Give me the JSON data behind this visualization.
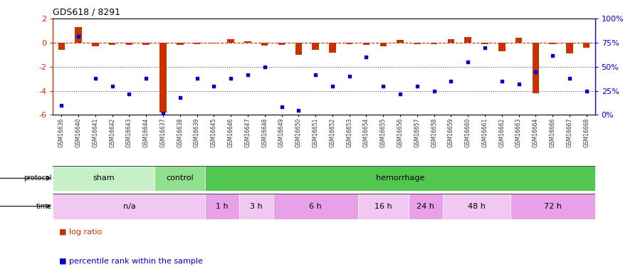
{
  "title": "GDS618 / 8291",
  "samples": [
    "GSM16636",
    "GSM16640",
    "GSM16641",
    "GSM16642",
    "GSM16643",
    "GSM16644",
    "GSM16637",
    "GSM16638",
    "GSM16639",
    "GSM16645",
    "GSM16646",
    "GSM16647",
    "GSM16648",
    "GSM16649",
    "GSM16650",
    "GSM16651",
    "GSM16652",
    "GSM16653",
    "GSM16654",
    "GSM16655",
    "GSM16656",
    "GSM16657",
    "GSM16658",
    "GSM16659",
    "GSM16660",
    "GSM16661",
    "GSM16662",
    "GSM16663",
    "GSM16664",
    "GSM16666",
    "GSM16667",
    "GSM16668"
  ],
  "log_ratio": [
    -0.6,
    1.3,
    -0.3,
    -0.2,
    -0.2,
    -0.2,
    -5.8,
    -0.15,
    -0.1,
    -0.05,
    0.3,
    0.1,
    -0.25,
    -0.2,
    -1.0,
    -0.6,
    -0.8,
    -0.1,
    -0.15,
    -0.3,
    0.25,
    -0.1,
    -0.1,
    0.3,
    0.5,
    -0.1,
    -0.7,
    0.4,
    -4.2,
    -0.1,
    -0.9,
    -0.4
  ],
  "percentile": [
    10,
    82,
    38,
    30,
    22,
    38,
    2,
    18,
    38,
    30,
    38,
    42,
    50,
    8,
    5,
    42,
    30,
    40,
    60,
    30,
    22,
    30,
    25,
    35,
    55,
    70,
    35,
    32,
    45,
    62,
    38,
    25
  ],
  "protocol_groups": [
    {
      "label": "sham",
      "start": 0,
      "end": 6,
      "color": "#c8f0c8"
    },
    {
      "label": "control",
      "start": 6,
      "end": 9,
      "color": "#90e090"
    },
    {
      "label": "hemorrhage",
      "start": 9,
      "end": 32,
      "color": "#50c850"
    }
  ],
  "time_groups": [
    {
      "label": "n/a",
      "start": 0,
      "end": 9,
      "color": "#f0c8f0"
    },
    {
      "label": "1 h",
      "start": 9,
      "end": 11,
      "color": "#e8a0e8"
    },
    {
      "label": "3 h",
      "start": 11,
      "end": 13,
      "color": "#f0c8f0"
    },
    {
      "label": "6 h",
      "start": 13,
      "end": 18,
      "color": "#e8a0e8"
    },
    {
      "label": "16 h",
      "start": 18,
      "end": 21,
      "color": "#f0c8f0"
    },
    {
      "label": "24 h",
      "start": 21,
      "end": 23,
      "color": "#e8a0e8"
    },
    {
      "label": "48 h",
      "start": 23,
      "end": 27,
      "color": "#f0c8f0"
    },
    {
      "label": "72 h",
      "start": 27,
      "end": 32,
      "color": "#e8a0e8"
    }
  ],
  "bar_color": "#c83200",
  "dot_color": "#0000c8",
  "ylim": [
    -6,
    2
  ],
  "yticks_left": [
    -6,
    -4,
    -2,
    0,
    2
  ],
  "yticks_right": [
    0,
    25,
    50,
    75,
    100
  ],
  "hline_y": [
    0,
    -2,
    -4
  ],
  "hline_styles": [
    "--",
    ":",
    ":"
  ],
  "hline_colors": [
    "#c83200",
    "#555555",
    "#555555"
  ],
  "bar_width": 0.4
}
